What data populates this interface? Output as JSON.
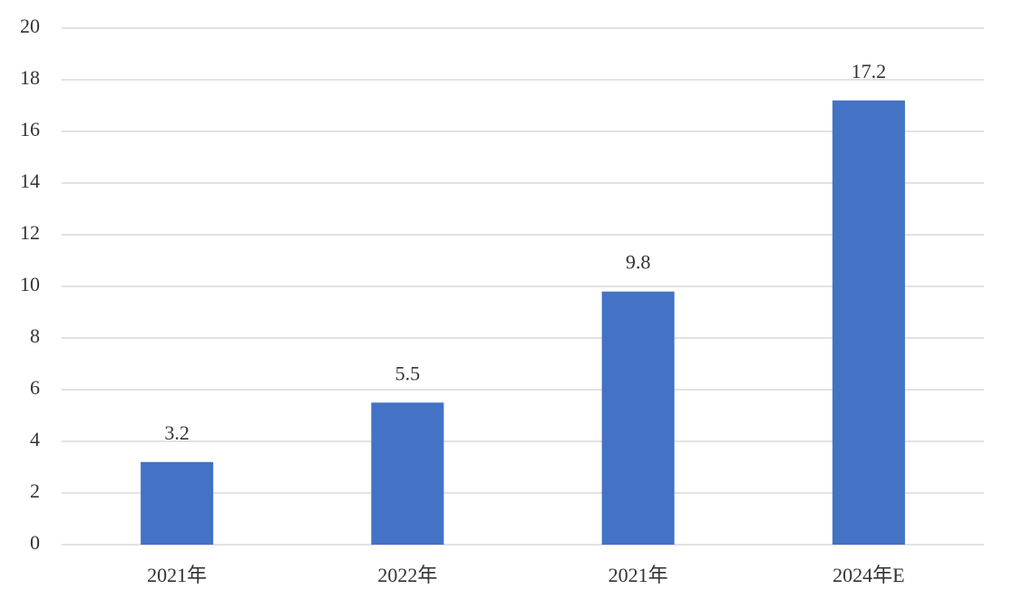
{
  "chart_data": {
    "type": "bar",
    "categories": [
      "2021年",
      "2022年",
      "2021年",
      "2024年E"
    ],
    "values": [
      3.2,
      5.5,
      9.8,
      17.2
    ],
    "color": "#4472c4",
    "ylim": [
      0,
      20
    ],
    "yticks": [
      0,
      2,
      4,
      6,
      8,
      10,
      12,
      14,
      16,
      18,
      20
    ],
    "grid": true,
    "data_labels": true
  }
}
